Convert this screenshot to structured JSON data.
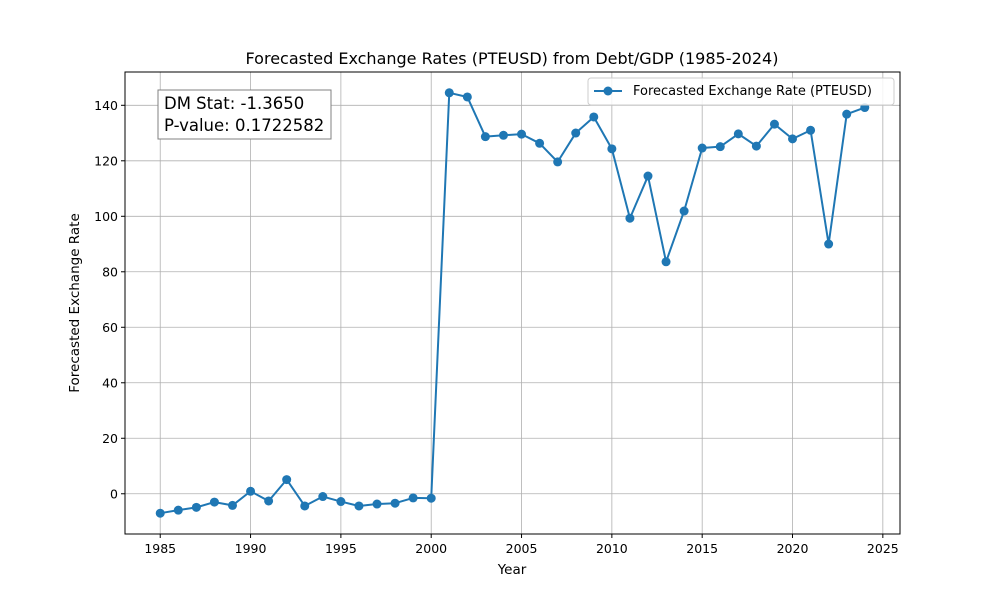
{
  "chart_data": {
    "type": "line",
    "title": "Forecasted Exchange Rates (PTEUSD) from Debt/GDP (1985-2024)",
    "xlabel": "Year",
    "ylabel": "Forecasted Exchange Rate",
    "xlim": [
      1983.05,
      2025.95
    ],
    "ylim": [
      -14.5,
      152
    ],
    "x_ticks": [
      1985,
      1990,
      1995,
      2000,
      2005,
      2010,
      2015,
      2020,
      2025
    ],
    "y_ticks": [
      0,
      20,
      40,
      60,
      80,
      100,
      120,
      140
    ],
    "grid": true,
    "legend_position": "top-right",
    "series": [
      {
        "name": "Forecasted Exchange Rate (PTEUSD)",
        "color": "#1f77b4",
        "x": [
          1985,
          1986,
          1987,
          1988,
          1989,
          1990,
          1991,
          1992,
          1993,
          1994,
          1995,
          1996,
          1997,
          1998,
          1999,
          2000,
          2001,
          2002,
          2003,
          2004,
          2005,
          2006,
          2007,
          2008,
          2009,
          2010,
          2011,
          2012,
          2013,
          2014,
          2015,
          2016,
          2017,
          2018,
          2019,
          2020,
          2021,
          2022,
          2023,
          2024
        ],
        "y": [
          -7.0,
          -5.9,
          -4.9,
          -3.0,
          -4.2,
          0.9,
          -2.6,
          5.1,
          -4.4,
          -1.0,
          -2.8,
          -4.4,
          -3.7,
          -3.4,
          -1.5,
          -1.6,
          144.5,
          143.0,
          128.7,
          129.2,
          129.6,
          126.3,
          119.6,
          130.0,
          135.8,
          124.3,
          99.3,
          114.5,
          83.6,
          101.9,
          124.6,
          125.1,
          129.7,
          125.3,
          133.2,
          127.9,
          131.0,
          90.0,
          136.8,
          139.2
        ]
      }
    ],
    "annotation": {
      "line1": "DM Stat: -1.3650",
      "line2": "P-value: 0.1722582"
    }
  }
}
